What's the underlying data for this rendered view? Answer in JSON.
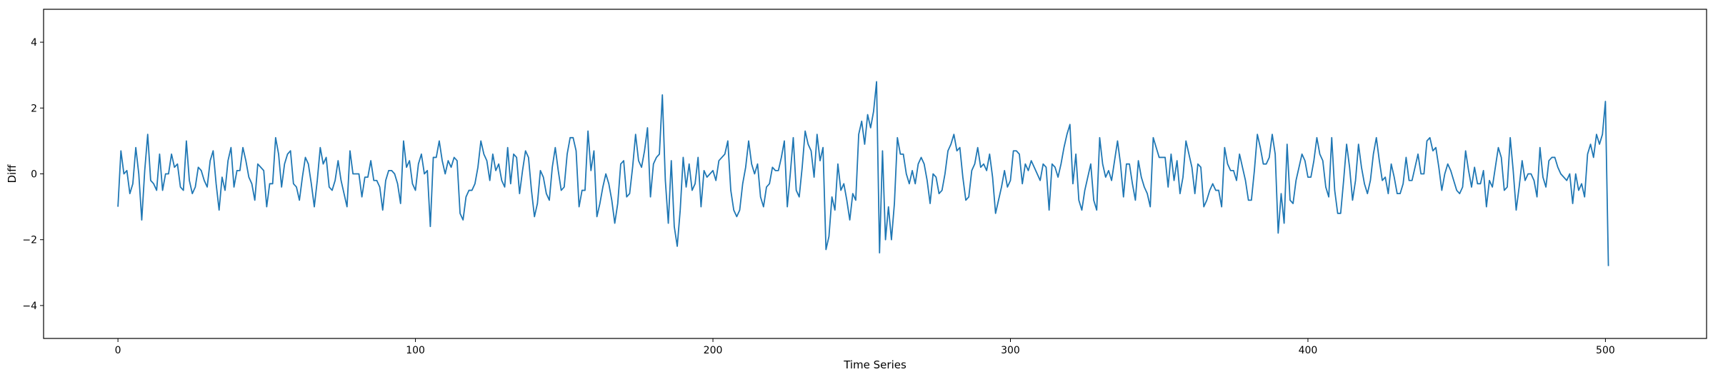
{
  "chart_data": {
    "type": "line",
    "title": "",
    "xlabel": "Time Series",
    "ylabel": "Diff",
    "xlim": [
      -25,
      534
    ],
    "ylim": [
      -5,
      5
    ],
    "xticks": [
      0,
      100,
      200,
      300,
      400,
      500
    ],
    "yticks": [
      -4,
      -2,
      0,
      2,
      4
    ],
    "grid": false,
    "legend": "none",
    "series": [
      {
        "color": "#1f77b4",
        "x_start": 0,
        "x_step": 1,
        "values": [
          -1.0,
          0.7,
          0.0,
          0.1,
          -0.6,
          -0.3,
          0.8,
          0.0,
          -1.4,
          0.1,
          1.2,
          -0.2,
          -0.3,
          -0.5,
          0.6,
          -0.5,
          0.0,
          0.0,
          0.6,
          0.2,
          0.3,
          -0.4,
          -0.5,
          1.0,
          -0.2,
          -0.6,
          -0.4,
          0.2,
          0.1,
          -0.2,
          -0.4,
          0.4,
          0.7,
          -0.3,
          -1.1,
          -0.1,
          -0.5,
          0.4,
          0.8,
          -0.4,
          0.1,
          0.1,
          0.8,
          0.4,
          -0.1,
          -0.3,
          -0.8,
          0.3,
          0.2,
          0.1,
          -1.0,
          -0.3,
          -0.3,
          1.1,
          0.6,
          -0.4,
          0.3,
          0.6,
          0.7,
          -0.3,
          -0.4,
          -0.8,
          -0.1,
          0.5,
          0.3,
          -0.3,
          -1.0,
          -0.2,
          0.8,
          0.3,
          0.5,
          -0.4,
          -0.5,
          -0.2,
          0.4,
          -0.2,
          -0.6,
          -1.0,
          0.7,
          0.0,
          0.0,
          0.0,
          -0.7,
          -0.1,
          -0.1,
          0.4,
          -0.2,
          -0.2,
          -0.4,
          -1.1,
          -0.2,
          0.1,
          0.1,
          0.0,
          -0.3,
          -0.9,
          1.0,
          0.2,
          0.4,
          -0.3,
          -0.5,
          0.3,
          0.6,
          0.0,
          0.1,
          -1.6,
          0.5,
          0.5,
          1.0,
          0.4,
          0.0,
          0.4,
          0.2,
          0.5,
          0.4,
          -1.2,
          -1.4,
          -0.7,
          -0.5,
          -0.5,
          -0.3,
          0.2,
          1.0,
          0.6,
          0.4,
          -0.2,
          0.6,
          0.1,
          0.3,
          -0.2,
          -0.4,
          0.8,
          -0.3,
          0.6,
          0.5,
          -0.6,
          0.1,
          0.7,
          0.5,
          -0.5,
          -1.3,
          -0.9,
          0.1,
          -0.1,
          -0.6,
          -0.8,
          0.2,
          0.8,
          0.1,
          -0.5,
          -0.4,
          0.6,
          1.1,
          1.1,
          0.7,
          -1.0,
          -0.5,
          -0.5,
          1.3,
          0.1,
          0.7,
          -1.3,
          -0.9,
          -0.4,
          0.0,
          -0.3,
          -0.8,
          -1.5,
          -0.9,
          0.3,
          0.4,
          -0.7,
          -0.6,
          0.2,
          1.2,
          0.4,
          0.2,
          0.7,
          1.4,
          -0.7,
          0.3,
          0.5,
          0.6,
          2.4,
          -0.2,
          -1.5,
          0.4,
          -1.6,
          -2.2,
          -1.1,
          0.5,
          -0.4,
          0.3,
          -0.5,
          -0.3,
          0.5,
          -1.0,
          0.1,
          -0.1,
          0.0,
          0.1,
          -0.2,
          0.4,
          0.5,
          0.6,
          1.0,
          -0.5,
          -1.1,
          -1.3,
          -1.1,
          -0.3,
          0.2,
          1.0,
          0.3,
          0.0,
          0.3,
          -0.7,
          -1.0,
          -0.4,
          -0.3,
          0.2,
          0.1,
          0.1,
          0.5,
          1.0,
          -1.0,
          0.0,
          1.1,
          -0.5,
          -0.7,
          0.2,
          1.3,
          0.9,
          0.7,
          -0.1,
          1.2,
          0.4,
          0.8,
          -2.3,
          -1.9,
          -0.7,
          -1.1,
          0.3,
          -0.5,
          -0.3,
          -0.8,
          -1.4,
          -0.6,
          -0.8,
          1.2,
          1.6,
          0.9,
          1.8,
          1.4,
          1.9,
          2.8,
          -2.4,
          0.7,
          -2.0,
          -1.0,
          -2.0,
          -0.9,
          1.1,
          0.6,
          0.6,
          0.0,
          -0.3,
          0.1,
          -0.3,
          0.3,
          0.5,
          0.3,
          -0.2,
          -0.9,
          0.0,
          -0.1,
          -0.6,
          -0.5,
          0.0,
          0.7,
          0.9,
          1.2,
          0.7,
          0.8,
          -0.1,
          -0.8,
          -0.7,
          0.1,
          0.3,
          0.8,
          0.2,
          0.3,
          0.1,
          0.6,
          -0.1,
          -1.2,
          -0.8,
          -0.4,
          0.1,
          -0.4,
          -0.2,
          0.7,
          0.7,
          0.6,
          -0.3,
          0.3,
          0.1,
          0.4,
          0.2,
          0.0,
          -0.2,
          0.3,
          0.2,
          -1.1,
          0.3,
          0.2,
          -0.1,
          0.3,
          0.8,
          1.2,
          1.5,
          -0.3,
          0.6,
          -0.8,
          -1.1,
          -0.5,
          -0.1,
          0.3,
          -0.8,
          -1.1,
          1.1,
          0.3,
          -0.1,
          0.1,
          -0.2,
          0.4,
          1.0,
          0.3,
          -0.7,
          0.3,
          0.3,
          -0.3,
          -0.8,
          0.4,
          -0.1,
          -0.4,
          -0.6,
          -1.0,
          1.1,
          0.8,
          0.5,
          0.5,
          0.5,
          -0.4,
          0.6,
          -0.2,
          0.4,
          -0.6,
          -0.1,
          1.0,
          0.6,
          0.2,
          -0.6,
          0.3,
          0.2,
          -1.0,
          -0.8,
          -0.5,
          -0.3,
          -0.5,
          -0.5,
          -1.0,
          0.8,
          0.3,
          0.1,
          0.1,
          -0.2,
          0.6,
          0.2,
          -0.2,
          -0.8,
          -0.8,
          0.1,
          1.2,
          0.8,
          0.3,
          0.3,
          0.5,
          1.2,
          0.6,
          -1.8,
          -0.6,
          -1.5,
          0.9,
          -0.8,
          -0.9,
          -0.2,
          0.2,
          0.6,
          0.4,
          -0.1,
          -0.1,
          0.4,
          1.1,
          0.6,
          0.4,
          -0.4,
          -0.7,
          1.1,
          -0.5,
          -1.2,
          -1.2,
          -0.2,
          0.9,
          0.2,
          -0.8,
          -0.2,
          0.9,
          0.2,
          -0.3,
          -0.6,
          -0.2,
          0.6,
          1.1,
          0.4,
          -0.2,
          -0.1,
          -0.6,
          0.3,
          -0.1,
          -0.6,
          -0.6,
          -0.3,
          0.5,
          -0.2,
          -0.2,
          0.2,
          0.6,
          0.0,
          0.0,
          1.0,
          1.1,
          0.7,
          0.8,
          0.2,
          -0.5,
          0.0,
          0.3,
          0.1,
          -0.2,
          -0.5,
          -0.6,
          -0.4,
          0.7,
          0.1,
          -0.4,
          0.2,
          -0.3,
          -0.3,
          0.1,
          -1.0,
          -0.2,
          -0.4,
          0.2,
          0.8,
          0.5,
          -0.5,
          -0.4,
          1.1,
          0.1,
          -1.1,
          -0.4,
          0.4,
          -0.2,
          0.0,
          0.0,
          -0.2,
          -0.7,
          0.8,
          -0.1,
          -0.4,
          0.4,
          0.5,
          0.5,
          0.2,
          0.0,
          -0.1,
          -0.2,
          0.0,
          -0.9,
          0.0,
          -0.5,
          -0.3,
          -0.7,
          0.6,
          0.9,
          0.5,
          1.2,
          0.9,
          1.2,
          2.2,
          -2.8
        ]
      }
    ]
  }
}
